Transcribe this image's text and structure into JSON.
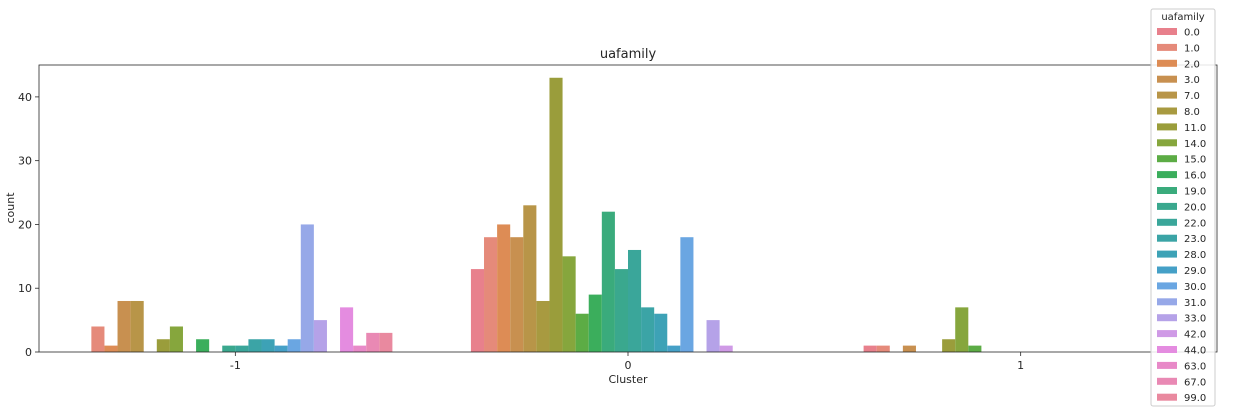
{
  "chart_data": {
    "type": "bar",
    "title": "uafamily",
    "xlabel": "Cluster",
    "ylabel": "count",
    "categories": [
      "-1",
      "0",
      "1"
    ],
    "ylim": [
      0,
      45
    ],
    "yticks": [
      0,
      10,
      20,
      30,
      40
    ],
    "legend": {
      "title": "uafamily",
      "placement": "right"
    },
    "series": [
      {
        "name": "0.0",
        "color": "#e8808c",
        "values": [
          0,
          13,
          1
        ]
      },
      {
        "name": "1.0",
        "color": "#e58a7a",
        "values": [
          4,
          18,
          1
        ]
      },
      {
        "name": "2.0",
        "color": "#dd8c55",
        "values": [
          1,
          20,
          0
        ]
      },
      {
        "name": "3.0",
        "color": "#c89050",
        "values": [
          8,
          18,
          1
        ]
      },
      {
        "name": "7.0",
        "color": "#b89548",
        "values": [
          8,
          23,
          0
        ]
      },
      {
        "name": "8.0",
        "color": "#a89a40",
        "values": [
          0,
          8,
          0
        ]
      },
      {
        "name": "11.0",
        "color": "#9a9d3b",
        "values": [
          2,
          43,
          2
        ]
      },
      {
        "name": "14.0",
        "color": "#86a63d",
        "values": [
          4,
          15,
          7
        ]
      },
      {
        "name": "15.0",
        "color": "#5cac45",
        "values": [
          0,
          6,
          1
        ]
      },
      {
        "name": "16.0",
        "color": "#3bae5c",
        "values": [
          2,
          9,
          0
        ]
      },
      {
        "name": "19.0",
        "color": "#3aab7c",
        "values": [
          0,
          22,
          0
        ]
      },
      {
        "name": "20.0",
        "color": "#3aa88e",
        "values": [
          1,
          13,
          0
        ]
      },
      {
        "name": "22.0",
        "color": "#3aa69a",
        "values": [
          1,
          16,
          0
        ]
      },
      {
        "name": "23.0",
        "color": "#3ba4a6",
        "values": [
          2,
          7,
          0
        ]
      },
      {
        "name": "28.0",
        "color": "#3da2b6",
        "values": [
          2,
          6,
          0
        ]
      },
      {
        "name": "29.0",
        "color": "#45a0c7",
        "values": [
          1,
          1,
          0
        ]
      },
      {
        "name": "30.0",
        "color": "#6aa6e2",
        "values": [
          2,
          18,
          0
        ]
      },
      {
        "name": "31.0",
        "color": "#96a8e8",
        "values": [
          20,
          0,
          0
        ]
      },
      {
        "name": "33.0",
        "color": "#b5a2e8",
        "values": [
          5,
          5,
          0
        ]
      },
      {
        "name": "42.0",
        "color": "#cf9ae6",
        "values": [
          0,
          1,
          0
        ]
      },
      {
        "name": "44.0",
        "color": "#e48ce0",
        "values": [
          7,
          0,
          0
        ]
      },
      {
        "name": "63.0",
        "color": "#e889c8",
        "values": [
          1,
          0,
          0
        ]
      },
      {
        "name": "67.0",
        "color": "#e989b4",
        "values": [
          3,
          0,
          0
        ]
      },
      {
        "name": "99.0",
        "color": "#e9899f",
        "values": [
          3,
          0,
          0
        ]
      }
    ]
  }
}
